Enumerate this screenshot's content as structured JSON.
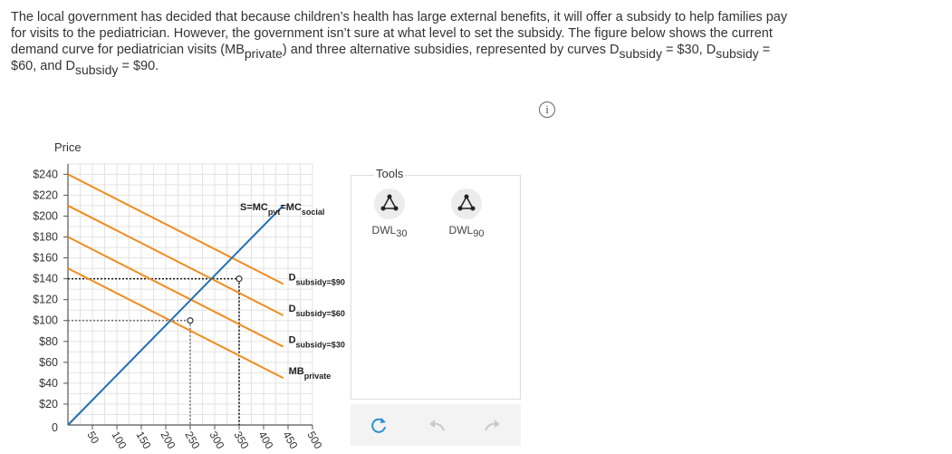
{
  "question": {
    "line1": "The local government has decided that because children’s health has large external benefits, it will offer a subsidy to help families pay",
    "line2": "for visits to the pediatrician. However, the government isn’t sure at what level to set the subsidy. The figure below shows the current",
    "line3_a": "demand curve for pediatrician visits (MB",
    "line3_sub1": "private",
    "line3_b": ") and three alternative subsidies, represented by curves D",
    "line3_sub2": "subsidy",
    "line3_c": " = $30, D",
    "line3_sub3": "subsidy",
    "line3_d": " =",
    "line4_a": "$60, and D",
    "line4_sub": "subsidy",
    "line4_b": " = $90."
  },
  "info_icon": "i",
  "price_axis_title": "Price",
  "tools": {
    "title": "Tools",
    "dwl30_label": "DWL",
    "dwl30_sub": "30",
    "dwl90_label": "DWL",
    "dwl90_sub": "90",
    "icon": "triangle-tool-icon"
  },
  "bottom_toolbar": [
    "reset-icon",
    "undo-icon",
    "redo-icon"
  ],
  "chart_data": {
    "type": "line",
    "y_ticks": [
      "$20",
      "$40",
      "$60",
      "$80",
      "$100",
      "$120",
      "$140",
      "$160",
      "$180",
      "$200",
      "$220",
      "$240"
    ],
    "y_tick_values": [
      20,
      40,
      60,
      80,
      100,
      120,
      140,
      160,
      180,
      200,
      220,
      240
    ],
    "x_ticks": [
      "50",
      "100",
      "150",
      "200",
      "250",
      "300",
      "350",
      "400",
      "450",
      "500"
    ],
    "x_tick_values": [
      50,
      100,
      150,
      200,
      250,
      300,
      350,
      400,
      450,
      500
    ],
    "origin_label": "0",
    "xlim": [
      0,
      500
    ],
    "ylim": [
      0,
      250
    ],
    "grid": true,
    "supply": {
      "label_main": "S=MC",
      "label_sub1": "pvt",
      "label_mid": "=MC",
      "label_sub2": "social",
      "color": "#1f6eb5",
      "points": [
        [
          0,
          0
        ],
        [
          440,
          210
        ]
      ]
    },
    "demand_curves": [
      {
        "id": "mb",
        "label_main": "MB",
        "label_sub": "private",
        "color": "#f28c1d",
        "points": [
          [
            0,
            150
          ],
          [
            440,
            45
          ]
        ]
      },
      {
        "id": "d30",
        "label_main": "D",
        "label_sub": "subsidy=$30",
        "color": "#f28c1d",
        "points": [
          [
            0,
            180
          ],
          [
            440,
            75
          ]
        ]
      },
      {
        "id": "d60",
        "label_main": "D",
        "label_sub": "subsidy=$60",
        "color": "#f28c1d",
        "points": [
          [
            0,
            210
          ],
          [
            440,
            105
          ]
        ]
      },
      {
        "id": "d90",
        "label_main": "D",
        "label_sub": "subsidy=$90",
        "color": "#f28c1d",
        "points": [
          [
            0,
            240
          ],
          [
            440,
            135
          ]
        ]
      }
    ],
    "equilibria": [
      {
        "x": 250,
        "y": 100,
        "color": "#777777"
      },
      {
        "x": 350,
        "y": 140,
        "color": "#111111"
      }
    ]
  }
}
